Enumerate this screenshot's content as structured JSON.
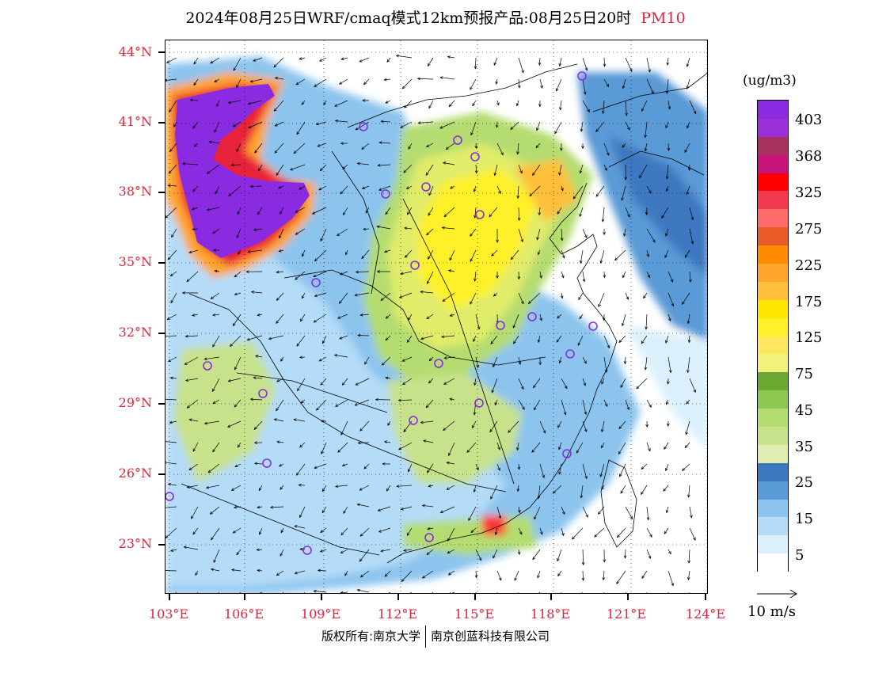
{
  "title": {
    "main": "2024年08月25日WRF/cmaq模式12km预报产品:08月25日20时",
    "variable": "PM10"
  },
  "axes": {
    "lat_labels": [
      "44°N",
      "41°N",
      "38°N",
      "35°N",
      "32°N",
      "29°N",
      "26°N",
      "23°N"
    ],
    "lon_labels": [
      "103°E",
      "106°E",
      "109°E",
      "112°E",
      "115°E",
      "118°E",
      "121°E",
      "124°E"
    ]
  },
  "colorbar": {
    "unit": "(ug/m3)",
    "labels": [
      "403",
      "368",
      "325",
      "275",
      "225",
      "175",
      "125",
      "75",
      "45",
      "35",
      "25",
      "15",
      "5"
    ],
    "colors": [
      "#8a2be2",
      "#9b30d9",
      "#a8325e",
      "#c8147a",
      "#ff0000",
      "#f03a4e",
      "#ff6a6a",
      "#e85a28",
      "#ff8c00",
      "#ffa52a",
      "#ffbf3a",
      "#ffe600",
      "#fff02a",
      "#ffe860",
      "#f2f27a",
      "#6aa832",
      "#8cc850",
      "#b4dc70",
      "#c8e28c",
      "#e0ecb4",
      "#3c78c0",
      "#5a9ad6",
      "#8cc4ee",
      "#b4dcf8",
      "#dcf0fc",
      "#ffffff"
    ]
  },
  "wind_reference": {
    "label": "10 m/s"
  },
  "copyright": {
    "left": "版权所有:南京大学",
    "right": "南京创蓝科技有限公司"
  }
}
